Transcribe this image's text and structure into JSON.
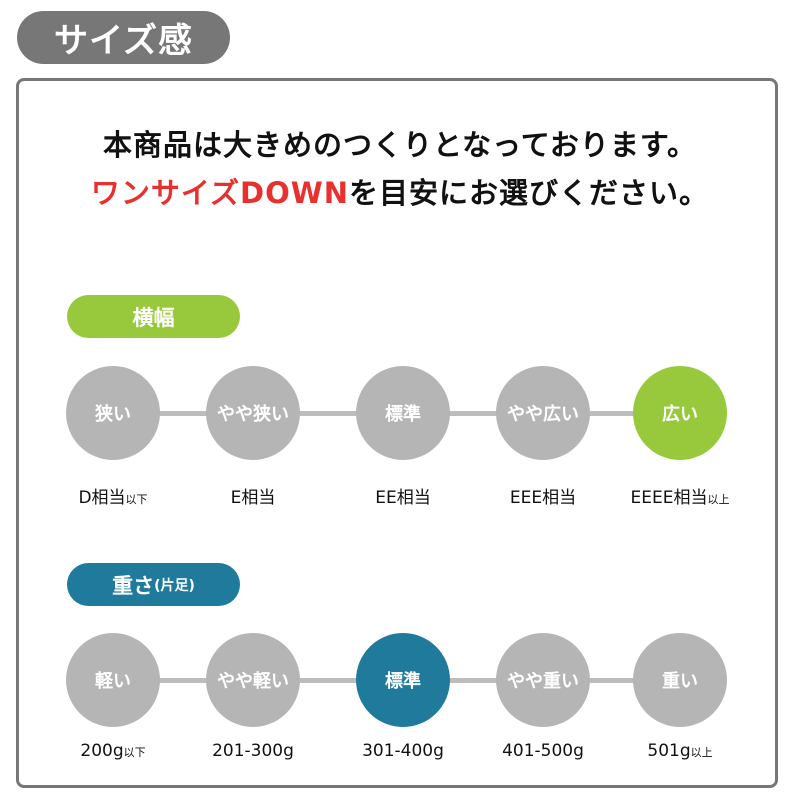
{
  "title": "サイズ感",
  "notice": {
    "line1": "本商品は大きめのつくりとなっております。",
    "line2_red": "ワンサイズDOWN",
    "line2_rest": "を目安にお選びください。"
  },
  "colors": {
    "green": "#98c93c",
    "blue": "#1f7a9b",
    "gray": "#b5b5b5",
    "red": "#e8312f"
  },
  "width": {
    "label": "横幅",
    "selected": 4,
    "items": [
      {
        "name": "狭い",
        "size": "D相当",
        "suffix": "以下"
      },
      {
        "name": "やや狭い",
        "size": "E相当",
        "suffix": ""
      },
      {
        "name": "標準",
        "size": "EE相当",
        "suffix": ""
      },
      {
        "name": "やや広い",
        "size": "EEE相当",
        "suffix": ""
      },
      {
        "name": "広い",
        "size": "EEEE相当",
        "suffix": "以上"
      }
    ]
  },
  "weight": {
    "label": "重さ",
    "label_sub": "(片足)",
    "selected": 2,
    "items": [
      {
        "name": "軽い",
        "size": "200g",
        "suffix": "以下"
      },
      {
        "name": "やや軽い",
        "size": "201-300g",
        "suffix": ""
      },
      {
        "name": "標準",
        "size": "301-400g",
        "suffix": ""
      },
      {
        "name": "やや重い",
        "size": "401-500g",
        "suffix": ""
      },
      {
        "name": "重い",
        "size": "501g",
        "suffix": "以上"
      }
    ]
  }
}
